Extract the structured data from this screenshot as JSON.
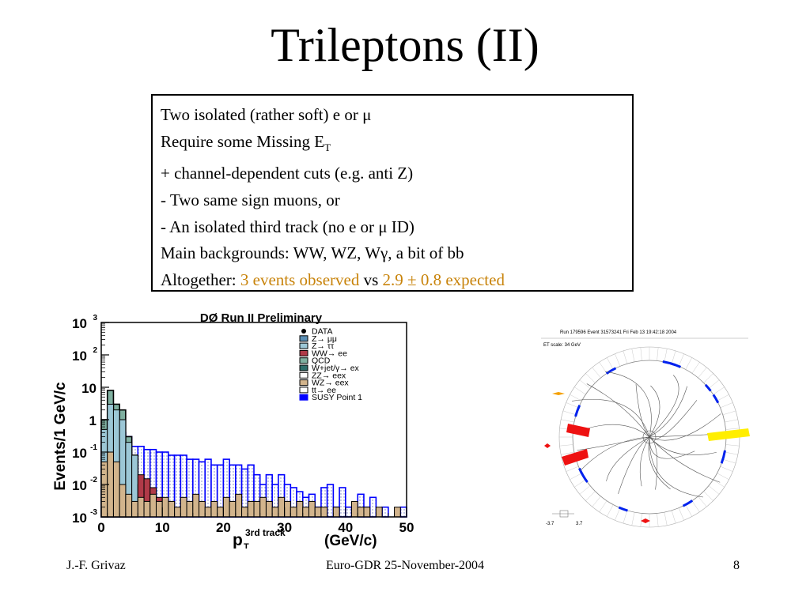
{
  "slide": {
    "title": "Trileptons (II)",
    "bullets": {
      "l1": "Two isolated (rather soft) e or μ",
      "l2": "Require some Missing E",
      "l2_sub": "T",
      "l3": "+ channel-dependent cuts (e.g. anti Z)",
      "l4": "- Two same sign muons, or",
      "l5": "- An isolated third track (no e or μ ID)",
      "l6": "Main backgrounds: WW, WZ, Wγ, a bit of bb",
      "l7_pre": "Altogether: ",
      "l7_obs": "3 events observed",
      "l7_mid": " vs ",
      "l7_exp": "2.9 ± 0.8 expected"
    },
    "footer": {
      "author": "J.-F. Grivaz",
      "event": "Euro-GDR 25-November-2004",
      "page": "8"
    }
  },
  "chart_data": {
    "type": "bar",
    "title": "DØ Run II Preliminary",
    "xlabel_main": "p",
    "xlabel_sub": "T",
    "xlabel_sup": "3rd track",
    "xlabel_unit": "(GeV/c)",
    "ylabel": "Events/1 GeV/c",
    "xlim": [
      0,
      50
    ],
    "ylim_log10": [
      -3,
      3
    ],
    "xticks": [
      "0",
      "10",
      "20",
      "30",
      "40",
      "50"
    ],
    "yticks": [
      {
        "base": "10",
        "exp": "3"
      },
      {
        "base": "10",
        "exp": "2"
      },
      {
        "base": "10",
        "exp": ""
      },
      {
        "base": "1",
        "exp": ""
      },
      {
        "base": "10",
        "exp": "-1"
      },
      {
        "base": "10",
        "exp": "-2"
      },
      {
        "base": "10",
        "exp": "-3"
      }
    ],
    "legend": [
      {
        "label": "DATA",
        "color": "#000000",
        "marker": "dot"
      },
      {
        "label": "Z→ μμ",
        "color": "#5b8fb5"
      },
      {
        "label": "Z→ ττ",
        "color": "#9cc7d6"
      },
      {
        "label": "WW→ ee",
        "color": "#b03a48"
      },
      {
        "label": "QCD",
        "color": "#7fb0a0"
      },
      {
        "label": "W+jet/γ→ ex",
        "color": "#2e6e6a"
      },
      {
        "label": "ZZ→ eex",
        "color": "#ffffff"
      },
      {
        "label": "WZ→ eex",
        "color": "#d2b48c"
      },
      {
        "label": "tt→ ee",
        "color": "#ffffff"
      },
      {
        "label": "SUSY Point 1",
        "color": "#0000ff"
      }
    ],
    "bins": [
      0,
      1,
      2,
      3,
      4,
      5,
      6,
      7,
      8,
      9,
      10,
      11,
      12,
      13,
      14,
      15,
      16,
      17,
      18,
      19,
      20,
      21,
      22,
      23,
      24,
      25,
      26,
      27,
      28,
      29,
      30,
      31,
      32,
      33,
      34,
      35,
      36,
      37,
      38,
      39,
      40,
      41,
      42,
      43,
      44,
      45,
      46,
      47,
      48,
      49
    ],
    "series": [
      {
        "name": "QCD",
        "values": [
          1.0,
          8.0,
          3.0,
          2.0,
          0.3,
          0.08,
          0,
          0,
          0,
          0,
          0,
          0,
          0,
          0,
          0,
          0,
          0,
          0,
          0,
          0,
          0,
          0,
          0,
          0,
          0,
          0,
          0,
          0,
          0,
          0,
          0,
          0,
          0,
          0,
          0,
          0,
          0,
          0,
          0,
          0,
          0,
          0,
          0,
          0,
          0,
          0,
          0,
          0,
          0,
          0
        ]
      },
      {
        "name": "Z→ ττ",
        "values": [
          0.5,
          3.0,
          2.0,
          1.0,
          0.2,
          0.08,
          0.01,
          0.005,
          0,
          0,
          0,
          0,
          0,
          0,
          0,
          0,
          0,
          0,
          0,
          0,
          0,
          0,
          0,
          0,
          0,
          0,
          0,
          0,
          0,
          0,
          0,
          0,
          0,
          0,
          0,
          0,
          0,
          0,
          0,
          0,
          0,
          0,
          0,
          0,
          0,
          0,
          0,
          0,
          0,
          0
        ]
      },
      {
        "name": "WW→ ee",
        "values": [
          0,
          0,
          0,
          0,
          0,
          0,
          0.02,
          0.015,
          0.008,
          0.004,
          0,
          0,
          0,
          0,
          0,
          0,
          0,
          0,
          0,
          0,
          0,
          0,
          0,
          0,
          0,
          0,
          0,
          0,
          0,
          0,
          0,
          0,
          0,
          0,
          0,
          0,
          0,
          0,
          0,
          0,
          0,
          0,
          0,
          0,
          0,
          0,
          0,
          0,
          0,
          0
        ]
      },
      {
        "name": "WZ→ eex",
        "values": [
          0.05,
          0.1,
          0.05,
          0.01,
          0.005,
          0.003,
          0.004,
          0.003,
          0.005,
          0.003,
          0.004,
          0.003,
          0.002,
          0.004,
          0.003,
          0.005,
          0.003,
          0.002,
          0.003,
          0.002,
          0.004,
          0.003,
          0.005,
          0.002,
          0.003,
          0.003,
          0.004,
          0.003,
          0.002,
          0.004,
          0.003,
          0.002,
          0.003,
          0.002,
          0.003,
          0.002,
          0.002,
          0.001,
          0.002,
          0.001,
          0.001,
          0.003,
          0.002,
          0.002,
          0.001,
          0.002,
          0.001,
          0.001,
          0.002,
          0.001
        ]
      },
      {
        "name": "SUSY Point 1",
        "values": [
          0.5,
          0.8,
          0.6,
          0.4,
          0.3,
          0.15,
          0.15,
          0.12,
          0.12,
          0.1,
          0.1,
          0.08,
          0.08,
          0.08,
          0.06,
          0.06,
          0.05,
          0.06,
          0.04,
          0.04,
          0.06,
          0.04,
          0.04,
          0.03,
          0.04,
          0.02,
          0.01,
          0.02,
          0.01,
          0.02,
          0.01,
          0.008,
          0.006,
          0.004,
          0.005,
          0.002,
          0.008,
          0.01,
          0.002,
          0.008,
          0.002,
          0.001,
          0.005,
          0.002,
          0.004,
          0.001,
          0.002,
          0.001,
          0.001,
          0.002
        ]
      }
    ]
  },
  "event_display": {
    "header": "Run 179596 Event 31573241 Fri Feb 13 19:42:18 2004",
    "et_scale": "ET scale: 34 GeV",
    "scale_left": "-3.7",
    "scale_right": "3.7"
  }
}
